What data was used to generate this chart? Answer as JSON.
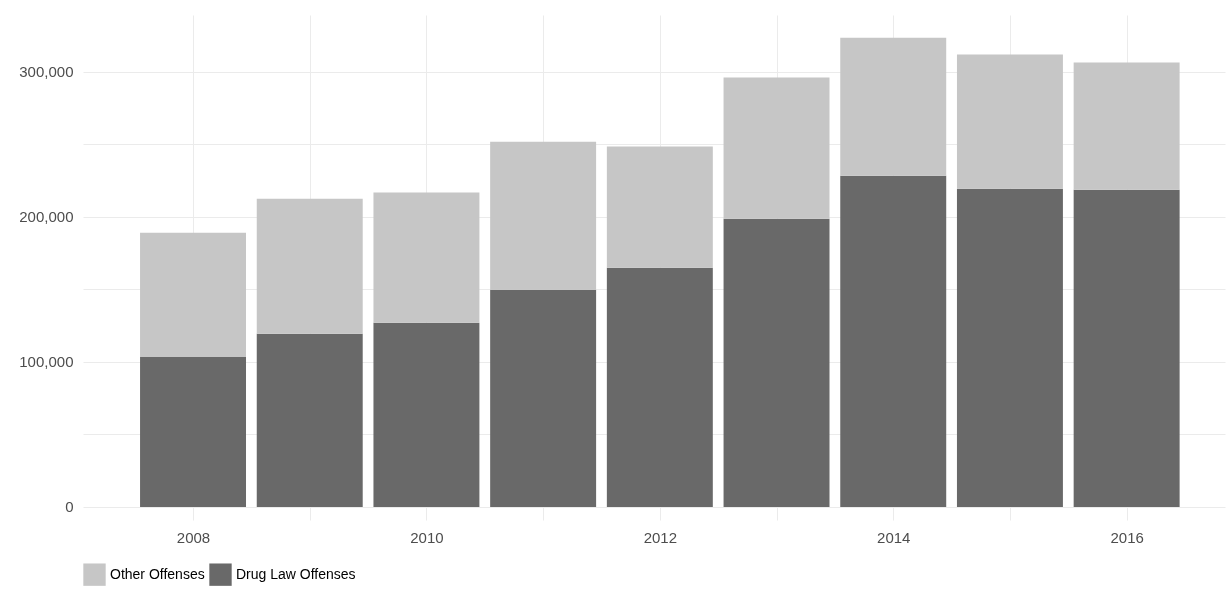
{
  "chart_data": {
    "type": "bar",
    "stacked": true,
    "x": [
      2008,
      2009,
      2010,
      2011,
      2012,
      2013,
      2014,
      2015,
      2016
    ],
    "series": [
      {
        "name": "Drug Law Offenses",
        "color": "#696969",
        "values": [
          103400,
          119300,
          126900,
          149700,
          164800,
          198600,
          228300,
          219300,
          218600
        ]
      },
      {
        "name": "Other Offenses",
        "color": "#c6c6c6",
        "values": [
          85600,
          93100,
          89700,
          102000,
          83500,
          97300,
          95100,
          92400,
          87600
        ]
      }
    ],
    "xlim": [
      2007.1,
      2016.8
    ],
    "xticks": [
      2008,
      {
        "value": 2009,
        "label": null
      },
      2010,
      {
        "value": 2011,
        "label": null
      },
      2012,
      {
        "value": 2013,
        "label": null
      },
      2014,
      {
        "value": 2015,
        "label": null
      },
      2016
    ],
    "ylim": [
      -9000,
      339000
    ],
    "yticks": [
      {
        "value": 0,
        "label": "0"
      },
      {
        "value": 50000,
        "label": null
      },
      {
        "value": 100000,
        "label": "100,000"
      },
      {
        "value": 150000,
        "label": null
      },
      {
        "value": 200000,
        "label": "200,000"
      },
      {
        "value": 250000,
        "label": null
      },
      {
        "value": 300000,
        "label": "300,000"
      }
    ],
    "grid": true,
    "legend": "bottom"
  }
}
